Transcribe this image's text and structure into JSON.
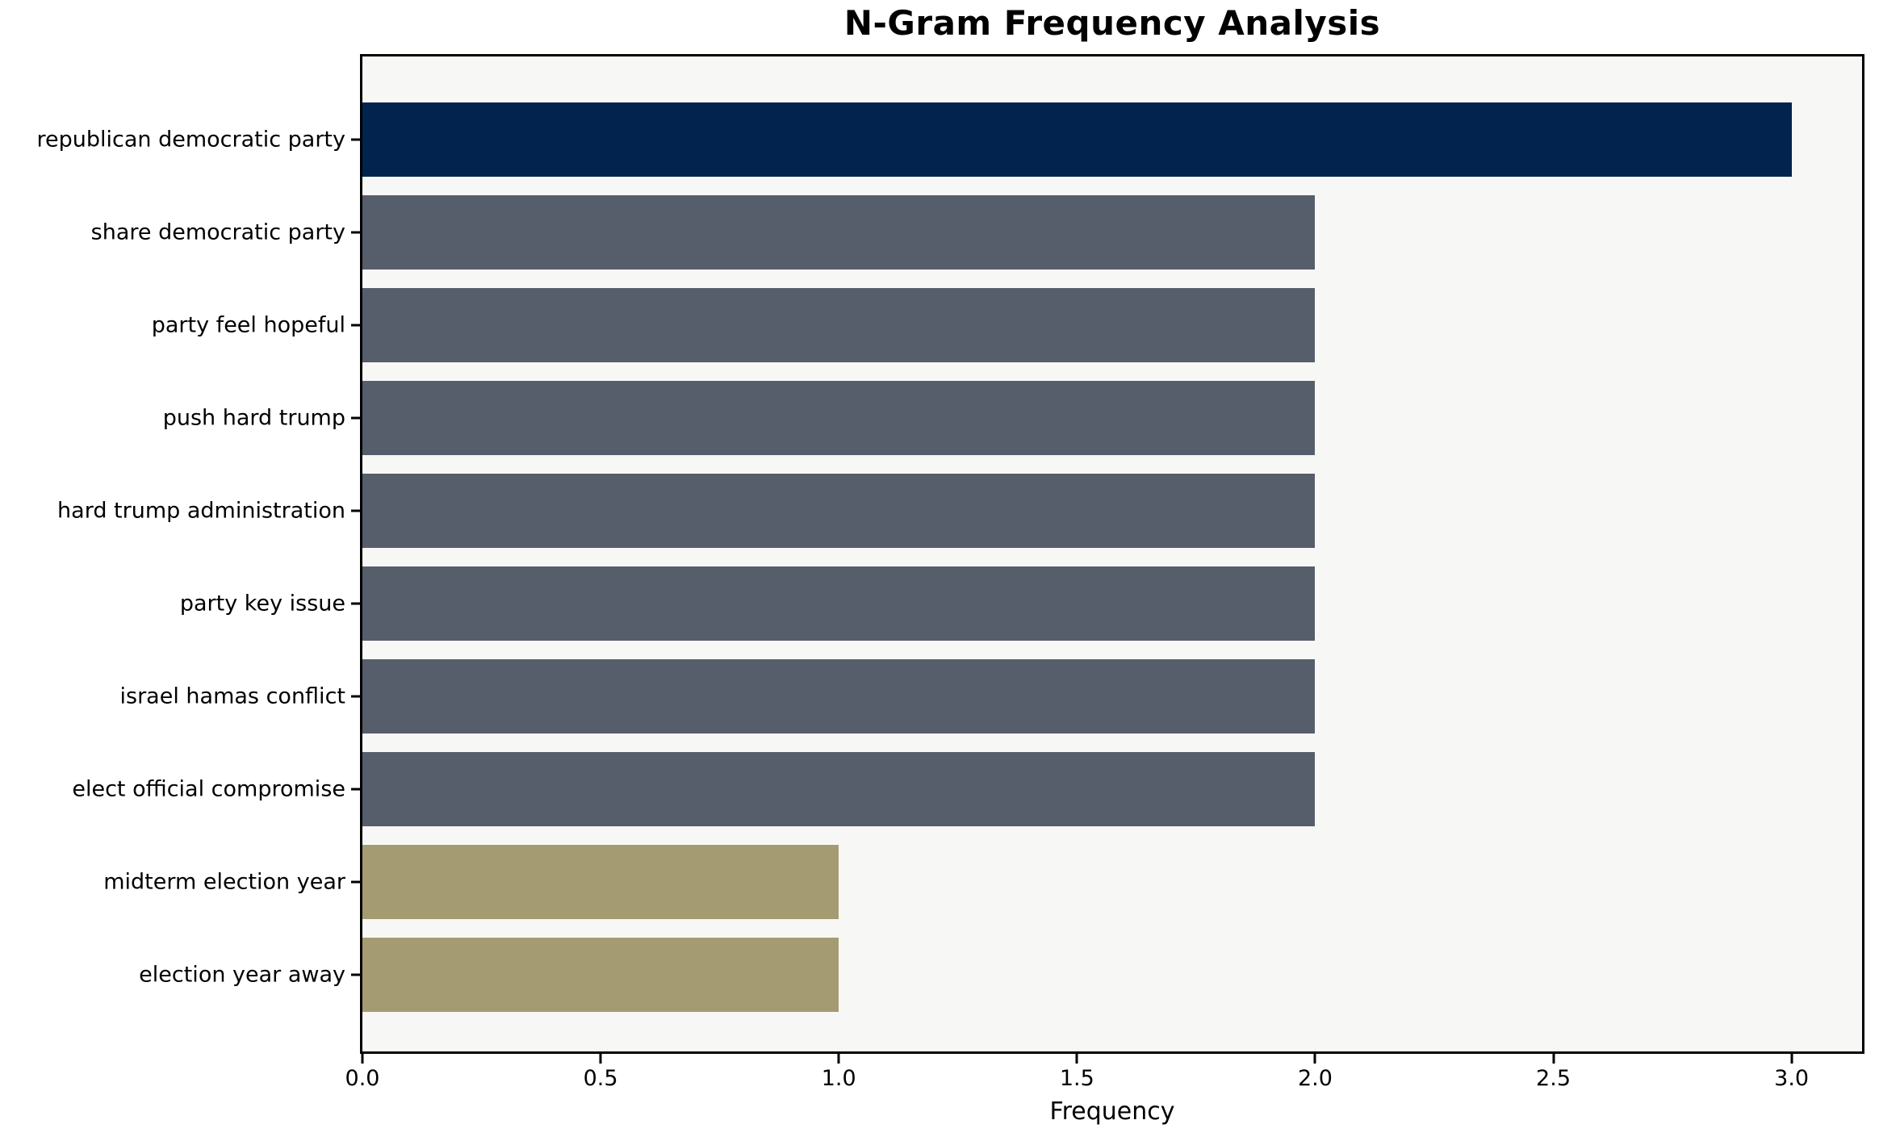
{
  "chart_data": {
    "type": "bar",
    "orientation": "horizontal",
    "title": "N-Gram Frequency Analysis",
    "xlabel": "Frequency",
    "ylabel": "",
    "categories": [
      "republican democratic party",
      "share democratic party",
      "party feel hopeful",
      "push hard trump",
      "hard trump administration",
      "party key issue",
      "israel hamas conflict",
      "elect official compromise",
      "midterm election year",
      "election year away"
    ],
    "values": [
      3,
      2,
      2,
      2,
      2,
      2,
      2,
      2,
      1,
      1
    ],
    "bar_colors": [
      "#01234d",
      "#565d6b",
      "#565d6b",
      "#565d6b",
      "#565d6b",
      "#565d6b",
      "#565d6b",
      "#565d6b",
      "#a49b72",
      "#a49b72"
    ],
    "xlim": [
      0,
      3.148
    ],
    "xticks": [
      0.0,
      0.5,
      1.0,
      1.5,
      2.0,
      2.5,
      3.0
    ],
    "xtick_labels": [
      "0.0",
      "0.5",
      "1.0",
      "1.5",
      "2.0",
      "2.5",
      "3.0"
    ],
    "grid": false,
    "legend": null,
    "colors": {
      "plot_background": "#f7f7f6",
      "figure_background": "#ffffff",
      "axis_frame": "#000000",
      "text": "#000000",
      "bar_frequency_3": "#01234d",
      "bar_frequency_2": "#565d6b",
      "bar_frequency_1": "#a49b72"
    }
  }
}
